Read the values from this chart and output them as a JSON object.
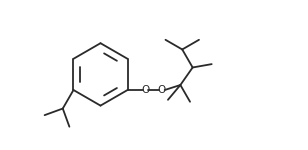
{
  "bg_color": "#ffffff",
  "line_color": "#2a2a2a",
  "line_width": 1.3,
  "o_fontsize": 7.5,
  "fig_width": 3.08,
  "fig_height": 1.5,
  "dpi": 100,
  "xlim": [
    0,
    10
  ],
  "ylim": [
    0,
    5
  ]
}
